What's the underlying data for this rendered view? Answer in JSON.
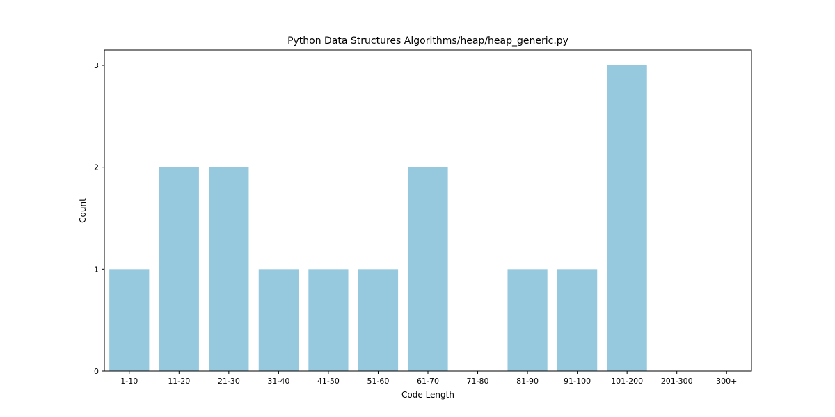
{
  "chart_data": {
    "type": "bar",
    "title": "Python Data Structures Algorithms/heap/heap_generic.py",
    "xlabel": "Code Length",
    "ylabel": "Count",
    "categories": [
      "1-10",
      "11-20",
      "21-30",
      "31-40",
      "41-50",
      "51-60",
      "61-70",
      "71-80",
      "81-90",
      "91-100",
      "101-200",
      "201-300",
      "300+"
    ],
    "values": [
      1,
      2,
      2,
      1,
      1,
      1,
      2,
      0,
      1,
      1,
      3,
      0,
      0
    ],
    "ylim": [
      0,
      3.15
    ],
    "yticks": [
      0,
      1,
      2,
      3
    ],
    "bar_color": "#96c9de",
    "grid": false,
    "legend": "none"
  }
}
